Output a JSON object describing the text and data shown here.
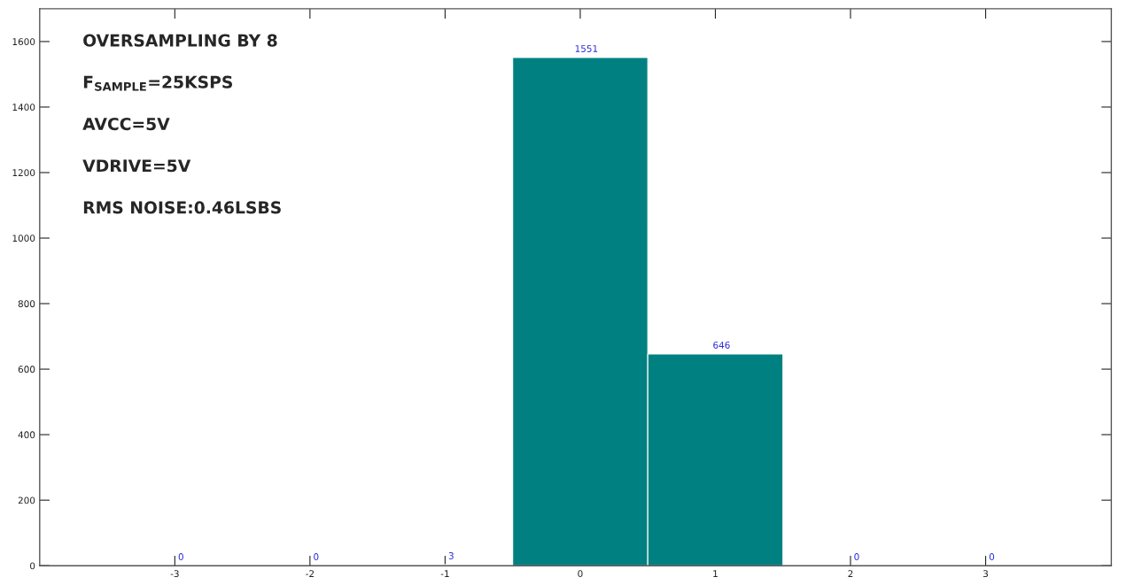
{
  "chart_data": {
    "type": "histogram",
    "bins": [
      -3.5,
      -2.5,
      -1.5,
      -0.5,
      0.5,
      1.5,
      2.5,
      3.5
    ],
    "values": [
      0,
      0,
      3,
      1551,
      646,
      0,
      0
    ],
    "color": "#008080",
    "data_labels": true,
    "xlim": [
      -4,
      3.93
    ],
    "xticks": [
      -3,
      -2,
      -1,
      0,
      1,
      2,
      3
    ],
    "ylim": [
      0,
      1700
    ],
    "yticks": [
      0,
      200,
      400,
      600,
      800,
      1000,
      1200,
      1400,
      1600
    ],
    "grid": false,
    "annotations": [
      "OVERSAMPLING BY 8",
      "F$_{SAMPLE}$=25KSPS",
      "AVCC=5V",
      "VDRIVE=5V",
      "RMS NOISE:0.46LSBS"
    ]
  }
}
